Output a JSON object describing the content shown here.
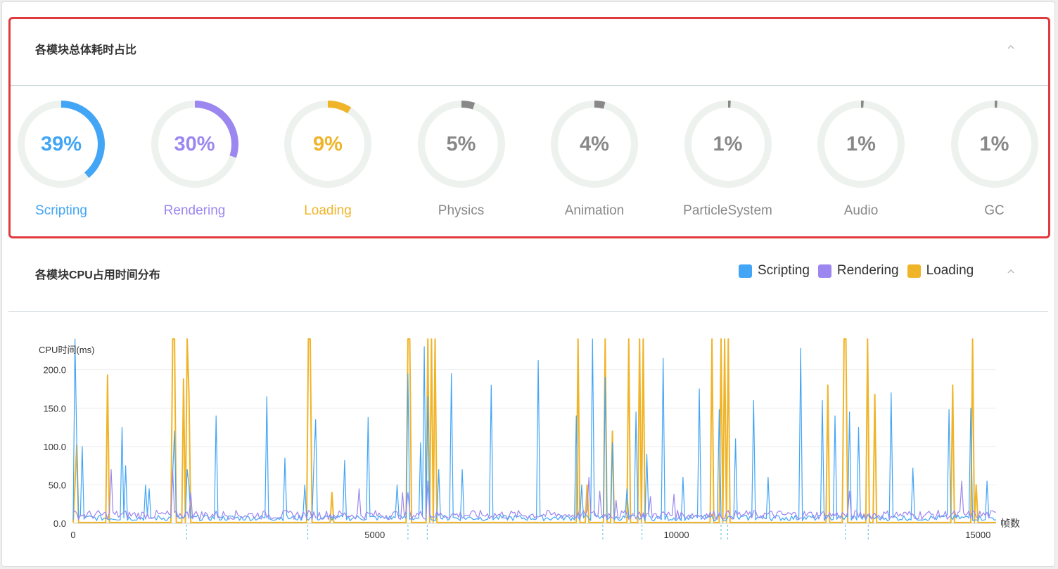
{
  "panel_module_share": {
    "title": "各模块总体耗时占比",
    "gauges": [
      {
        "value": "39%",
        "fraction": 0.39,
        "label": "Scripting",
        "color": "#42a5f5"
      },
      {
        "value": "30%",
        "fraction": 0.3,
        "label": "Rendering",
        "color": "#9c87f0"
      },
      {
        "value": "9%",
        "fraction": 0.09,
        "label": "Loading",
        "color": "#f0b429"
      },
      {
        "value": "5%",
        "fraction": 0.05,
        "label": "Physics",
        "color": "#888888"
      },
      {
        "value": "4%",
        "fraction": 0.04,
        "label": "Animation",
        "color": "#888888"
      },
      {
        "value": "1%",
        "fraction": 0.01,
        "label": "ParticleSystem",
        "color": "#888888"
      },
      {
        "value": "1%",
        "fraction": 0.01,
        "label": "Audio",
        "color": "#888888"
      },
      {
        "value": "1%",
        "fraction": 0.01,
        "label": "GC",
        "color": "#888888"
      }
    ]
  },
  "panel_cpu_time": {
    "title": "各模块CPU占用时间分布",
    "legend": [
      {
        "label": "Scripting",
        "color": "#42a5f5"
      },
      {
        "label": "Rendering",
        "color": "#9c87f0"
      },
      {
        "label": "Loading",
        "color": "#f0b429"
      }
    ]
  },
  "colors": {
    "track": "#edf2ee",
    "border_highlight": "#e03a3e",
    "grid": "#eeeeee",
    "marker": "#5bc0de"
  },
  "chart_data": {
    "type": "line",
    "ylabel": "CPU时间(ms)",
    "xlabel": "帧数",
    "ylim": [
      0,
      240
    ],
    "xlim": [
      0,
      15300
    ],
    "yticks": [
      0.0,
      50.0,
      100.0,
      150.0,
      200.0
    ],
    "ytick_labels": [
      "0.0",
      "50.0",
      "100.0",
      "150.0",
      "200.0"
    ],
    "xticks": [
      0,
      5000,
      10000,
      15000
    ],
    "xtick_labels": [
      "0",
      "5000",
      "10000",
      "15000"
    ],
    "markers_x": [
      1880,
      3890,
      5550,
      5870,
      8780,
      9430,
      10740,
      10850,
      12800,
      13180
    ],
    "series": [
      {
        "name": "Scripting",
        "color": "#42a5f5",
        "baseline": 7,
        "spikes": [
          [
            20,
            240
          ],
          [
            70,
            105
          ],
          [
            150,
            100
          ],
          [
            820,
            125
          ],
          [
            870,
            75
          ],
          [
            1200,
            50
          ],
          [
            1250,
            45
          ],
          [
            1650,
            65
          ],
          [
            1690,
            120
          ],
          [
            1880,
            70
          ],
          [
            1930,
            50
          ],
          [
            2380,
            140
          ],
          [
            3220,
            165
          ],
          [
            3520,
            85
          ],
          [
            3850,
            50
          ],
          [
            3990,
            75
          ],
          [
            4030,
            135
          ],
          [
            4500,
            82
          ],
          [
            4880,
            138
          ],
          [
            5380,
            50
          ],
          [
            5560,
            195
          ],
          [
            5760,
            105
          ],
          [
            5830,
            230
          ],
          [
            5890,
            165
          ],
          [
            6050,
            70
          ],
          [
            6260,
            195
          ],
          [
            6450,
            70
          ],
          [
            6930,
            180
          ],
          [
            7700,
            212
          ],
          [
            8350,
            140
          ],
          [
            8420,
            50
          ],
          [
            8600,
            240
          ],
          [
            8830,
            190
          ],
          [
            8940,
            105
          ],
          [
            9170,
            45
          ],
          [
            9320,
            145
          ],
          [
            9520,
            90
          ],
          [
            9780,
            215
          ],
          [
            10100,
            60
          ],
          [
            10380,
            175
          ],
          [
            10720,
            148
          ],
          [
            10990,
            110
          ],
          [
            11280,
            160
          ],
          [
            11520,
            60
          ],
          [
            12060,
            228
          ],
          [
            12420,
            160
          ],
          [
            12640,
            140
          ],
          [
            12880,
            145
          ],
          [
            13020,
            125
          ],
          [
            13560,
            170
          ],
          [
            13920,
            72
          ],
          [
            14520,
            148
          ],
          [
            14890,
            150
          ],
          [
            15150,
            55
          ]
        ]
      },
      {
        "name": "Rendering",
        "color": "#9c87f0",
        "baseline": 11,
        "spikes": [
          [
            640,
            70
          ],
          [
            1640,
            70
          ],
          [
            1960,
            40
          ],
          [
            4730,
            45
          ],
          [
            5460,
            40
          ],
          [
            5560,
            40
          ],
          [
            5880,
            55
          ],
          [
            8560,
            60
          ],
          [
            8720,
            42
          ],
          [
            8990,
            30
          ],
          [
            9560,
            35
          ],
          [
            9960,
            38
          ],
          [
            12860,
            42
          ],
          [
            14730,
            55
          ]
        ]
      },
      {
        "name": "Loading",
        "color": "#f0b429",
        "baseline": 1,
        "spikes": [
          [
            30,
            50
          ],
          [
            70,
            102
          ],
          [
            570,
            193
          ],
          [
            1650,
            240
          ],
          [
            1690,
            240
          ],
          [
            1830,
            188
          ],
          [
            1880,
            240
          ],
          [
            1910,
            170
          ],
          [
            3890,
            240
          ],
          [
            3920,
            240
          ],
          [
            4300,
            40
          ],
          [
            5540,
            240
          ],
          [
            5570,
            240
          ],
          [
            5880,
            240
          ],
          [
            5930,
            240
          ],
          [
            6000,
            240
          ],
          [
            8380,
            240
          ],
          [
            8520,
            50
          ],
          [
            8820,
            240
          ],
          [
            8950,
            120
          ],
          [
            9210,
            240
          ],
          [
            9390,
            240
          ],
          [
            9460,
            240
          ],
          [
            10600,
            240
          ],
          [
            10740,
            240
          ],
          [
            10790,
            240
          ],
          [
            10850,
            240
          ],
          [
            12500,
            180
          ],
          [
            12780,
            240
          ],
          [
            12820,
            240
          ],
          [
            13180,
            240
          ],
          [
            13300,
            168
          ],
          [
            14570,
            180
          ],
          [
            14910,
            240
          ],
          [
            14960,
            50
          ]
        ]
      }
    ]
  }
}
